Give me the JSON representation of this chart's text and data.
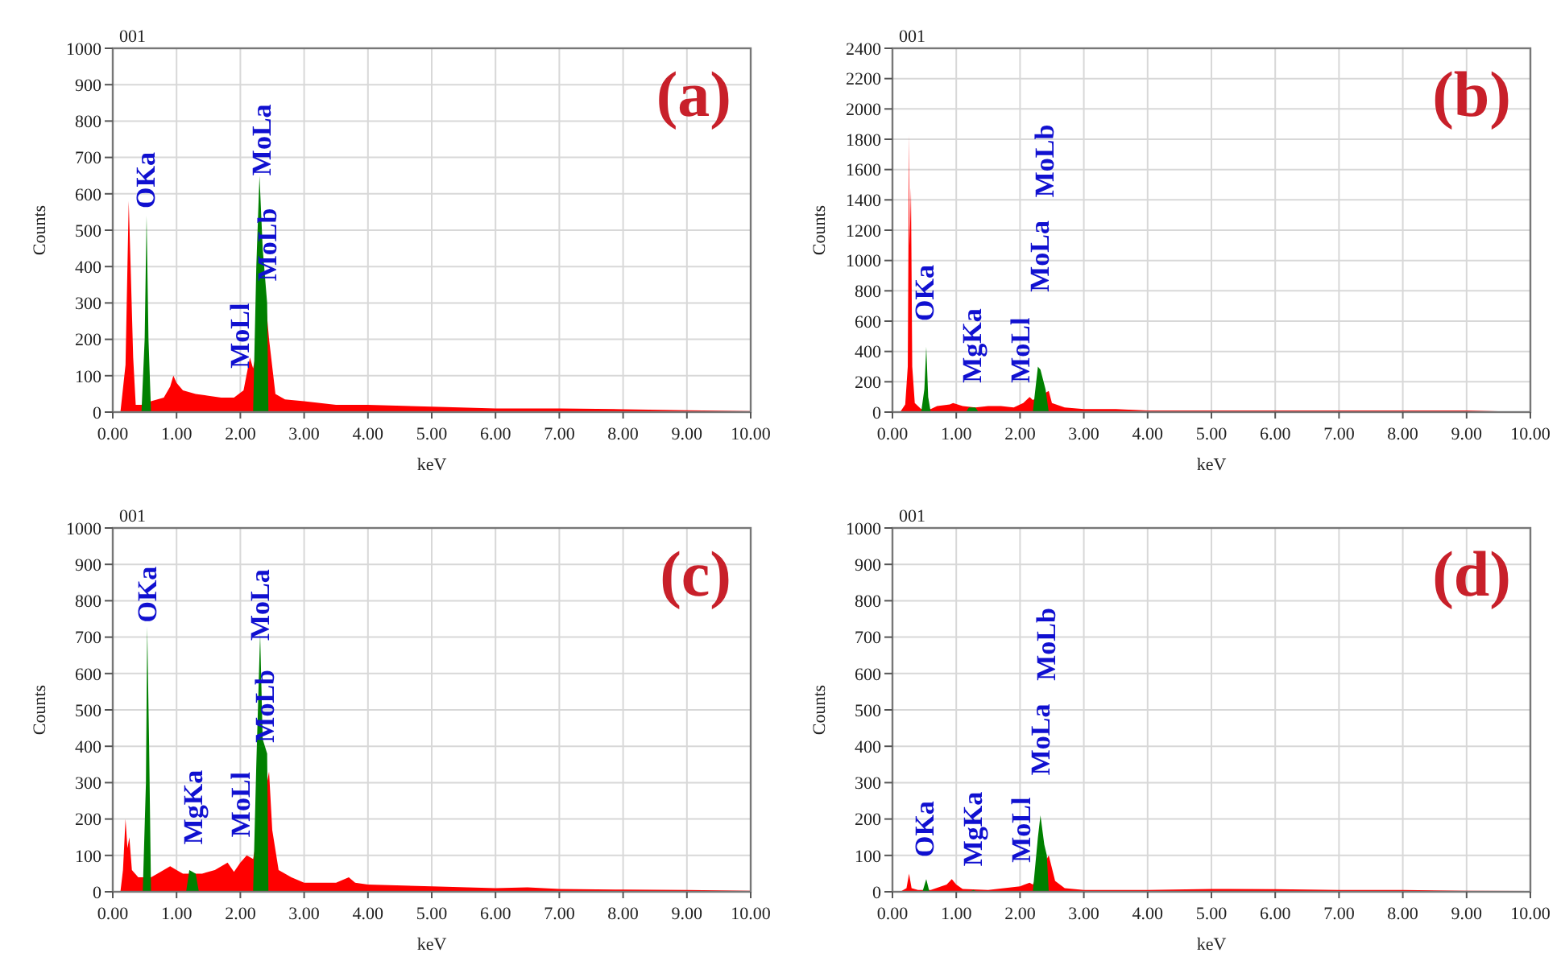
{
  "chart_data": [
    {
      "type": "area",
      "title": "001",
      "xlabel": "keV",
      "ylabel": "Counts",
      "xlim": [
        0,
        10
      ],
      "xticks": [
        {
          "value": 0,
          "label": "0.00"
        },
        {
          "value": 1,
          "label": "1.00"
        },
        {
          "value": 2,
          "label": "2.00"
        },
        {
          "value": 3,
          "label": "3.00"
        },
        {
          "value": 4,
          "label": "4.00"
        },
        {
          "value": 5,
          "label": "5.00"
        },
        {
          "value": 6,
          "label": "6.00"
        },
        {
          "value": 7,
          "label": "7.00"
        },
        {
          "value": 8,
          "label": "8.00"
        },
        {
          "value": 9,
          "label": "9.00"
        },
        {
          "value": 10,
          "label": "10.00"
        }
      ],
      "ylim": [
        0,
        1000
      ],
      "yticks": [
        0,
        100,
        200,
        300,
        400,
        500,
        600,
        700,
        800,
        900,
        1000
      ],
      "grid": true,
      "series": [
        {
          "color": "#ff0000",
          "x": [
            0.12,
            0.2,
            0.25,
            0.28,
            0.32,
            0.36,
            0.45,
            0.6,
            0.8,
            0.9,
            0.95,
            1.0,
            1.1,
            1.3,
            1.5,
            1.7,
            1.9,
            2.05,
            2.15,
            2.2,
            2.4,
            2.45,
            2.55,
            2.7,
            3.0,
            3.5,
            4.0,
            5.0,
            6.0,
            7.0,
            8.0,
            9.0,
            10.0
          ],
          "values": [
            0,
            130,
            580,
            400,
            150,
            20,
            20,
            30,
            40,
            70,
            100,
            80,
            60,
            50,
            45,
            40,
            40,
            60,
            150,
            120,
            300,
            200,
            50,
            35,
            30,
            20,
            20,
            15,
            10,
            10,
            8,
            5,
            3
          ]
        },
        {
          "color": "#008000",
          "x": [
            0.45,
            0.5,
            0.53,
            0.56,
            0.6,
            2.2,
            2.25,
            2.3,
            2.35,
            2.42,
            2.44
          ],
          "values": [
            0,
            200,
            540,
            200,
            0,
            0,
            400,
            650,
            450,
            300,
            0
          ]
        }
      ],
      "annotations": [
        "(a)",
        "OKa",
        "MoLl",
        "MoLb",
        "MoLa"
      ]
    },
    {
      "type": "area",
      "title": "001",
      "xlabel": "keV",
      "ylabel": "Counts",
      "xlim": [
        0,
        10
      ],
      "xticks": [
        {
          "value": 0,
          "label": "0.00"
        },
        {
          "value": 1,
          "label": "1.00"
        },
        {
          "value": 2,
          "label": "2.00"
        },
        {
          "value": 3,
          "label": "3.00"
        },
        {
          "value": 4,
          "label": "4.00"
        },
        {
          "value": 5,
          "label": "5.00"
        },
        {
          "value": 6,
          "label": "6.00"
        },
        {
          "value": 7,
          "label": "7.00"
        },
        {
          "value": 8,
          "label": "8.00"
        },
        {
          "value": 9,
          "label": "9.00"
        },
        {
          "value": 10,
          "label": "10.00"
        }
      ],
      "ylim": [
        0,
        2400
      ],
      "yticks": [
        0,
        200,
        400,
        600,
        800,
        1000,
        1200,
        1400,
        1600,
        1800,
        2000,
        2200,
        2400
      ],
      "grid": true,
      "series": [
        {
          "color": "#ff0000",
          "x": [
            0.12,
            0.2,
            0.24,
            0.26,
            0.27,
            0.29,
            0.31,
            0.35,
            0.45,
            0.6,
            0.7,
            0.9,
            0.95,
            1.1,
            1.3,
            1.5,
            1.7,
            1.9,
            2.05,
            2.15,
            2.2,
            2.45,
            2.5,
            2.7,
            3.0,
            3.5,
            4.0,
            5.0,
            6.0,
            7.0,
            8.0,
            9.0,
            10.0
          ],
          "values": [
            0,
            50,
            300,
            1830,
            1100,
            1480,
            300,
            60,
            20,
            20,
            40,
            50,
            60,
            40,
            30,
            40,
            40,
            30,
            60,
            100,
            80,
            140,
            60,
            30,
            20,
            20,
            10,
            10,
            10,
            10,
            10,
            10,
            0
          ]
        },
        {
          "color": "#008000",
          "x": [
            0.45,
            0.5,
            0.53,
            0.56,
            0.6,
            1.15,
            1.2,
            1.3,
            1.35,
            2.2,
            2.28,
            2.32,
            2.4,
            2.45
          ],
          "values": [
            0,
            150,
            430,
            100,
            0,
            0,
            30,
            30,
            0,
            0,
            300,
            280,
            150,
            0
          ]
        }
      ],
      "annotations": [
        "(b)",
        "OKa",
        "MgKa",
        "MoLl",
        "MoLa",
        "MoLb"
      ]
    },
    {
      "type": "area",
      "title": "001",
      "xlabel": "keV",
      "ylabel": "Counts",
      "xlim": [
        0,
        10
      ],
      "xticks": [
        {
          "value": 0,
          "label": "0.00"
        },
        {
          "value": 1,
          "label": "1.00"
        },
        {
          "value": 2,
          "label": "2.00"
        },
        {
          "value": 3,
          "label": "3.00"
        },
        {
          "value": 4,
          "label": "4.00"
        },
        {
          "value": 5,
          "label": "5.00"
        },
        {
          "value": 6,
          "label": "6.00"
        },
        {
          "value": 7,
          "label": "7.00"
        },
        {
          "value": 8,
          "label": "8.00"
        },
        {
          "value": 9,
          "label": "9.00"
        },
        {
          "value": 10,
          "label": "10.00"
        }
      ],
      "ylim": [
        0,
        1000
      ],
      "yticks": [
        0,
        100,
        200,
        300,
        400,
        500,
        600,
        700,
        800,
        900,
        1000
      ],
      "grid": true,
      "series": [
        {
          "color": "#ff0000",
          "x": [
            0.12,
            0.16,
            0.2,
            0.23,
            0.26,
            0.3,
            0.4,
            0.5,
            0.6,
            0.7,
            0.9,
            1.0,
            1.1,
            1.4,
            1.6,
            1.8,
            1.9,
            2.0,
            2.1,
            2.2,
            2.45,
            2.5,
            2.6,
            2.8,
            3.0,
            3.5,
            3.7,
            3.8,
            4.0,
            5.0,
            6.0,
            6.5,
            7.0,
            8.0,
            9.0,
            10.0
          ],
          "values": [
            0,
            60,
            200,
            120,
            150,
            60,
            40,
            40,
            40,
            50,
            70,
            60,
            50,
            50,
            60,
            80,
            55,
            80,
            100,
            90,
            330,
            170,
            60,
            40,
            25,
            25,
            40,
            25,
            20,
            15,
            10,
            12,
            8,
            6,
            5,
            3
          ]
        },
        {
          "color": "#008000",
          "x": [
            0.47,
            0.52,
            0.54,
            0.57,
            0.6,
            1.15,
            1.2,
            1.3,
            1.35,
            2.2,
            2.25,
            2.31,
            2.35,
            2.42,
            2.44
          ],
          "values": [
            0,
            300,
            730,
            400,
            0,
            0,
            60,
            50,
            0,
            0,
            350,
            710,
            420,
            380,
            0
          ]
        }
      ],
      "annotations": [
        "(c)",
        "OKa",
        "MgKa",
        "MoLl",
        "MoLb",
        "MoLa"
      ]
    },
    {
      "type": "area",
      "title": "001",
      "xlabel": "keV",
      "ylabel": "Counts",
      "xlim": [
        0,
        10
      ],
      "xticks": [
        {
          "value": 0,
          "label": "0.00"
        },
        {
          "value": 1,
          "label": "1.00"
        },
        {
          "value": 2,
          "label": "2.00"
        },
        {
          "value": 3,
          "label": "3.00"
        },
        {
          "value": 4,
          "label": "4.00"
        },
        {
          "value": 5,
          "label": "5.00"
        },
        {
          "value": 6,
          "label": "6.00"
        },
        {
          "value": 7,
          "label": "7.00"
        },
        {
          "value": 8,
          "label": "8.00"
        },
        {
          "value": 9,
          "label": "9.00"
        },
        {
          "value": 10,
          "label": "10.00"
        }
      ],
      "ylim": [
        0,
        1000
      ],
      "yticks": [
        0,
        100,
        200,
        300,
        400,
        500,
        600,
        700,
        800,
        900,
        1000
      ],
      "grid": true,
      "series": [
        {
          "color": "#ff0000",
          "x": [
            0.12,
            0.22,
            0.26,
            0.3,
            0.4,
            0.6,
            0.85,
            0.93,
            1.0,
            1.1,
            1.5,
            2.0,
            2.15,
            2.2,
            2.45,
            2.55,
            2.7,
            3.0,
            4.0,
            5.0,
            6.0,
            7.0,
            8.0,
            9.0,
            10.0
          ],
          "values": [
            0,
            10,
            50,
            10,
            5,
            5,
            20,
            35,
            20,
            8,
            5,
            15,
            25,
            20,
            100,
            30,
            10,
            5,
            5,
            8,
            7,
            5,
            5,
            3,
            2
          ]
        },
        {
          "color": "#008000",
          "x": [
            0.47,
            0.53,
            0.58,
            1.2,
            1.27,
            1.34,
            2.2,
            2.28,
            2.32,
            2.38,
            2.42,
            2.45
          ],
          "values": [
            0,
            35,
            0,
            0,
            5,
            0,
            0,
            150,
            210,
            130,
            100,
            0
          ]
        }
      ],
      "annotations": [
        "(d)",
        "OKa",
        "MgKa",
        "MoLl",
        "MoLa",
        "MoLb"
      ]
    }
  ]
}
